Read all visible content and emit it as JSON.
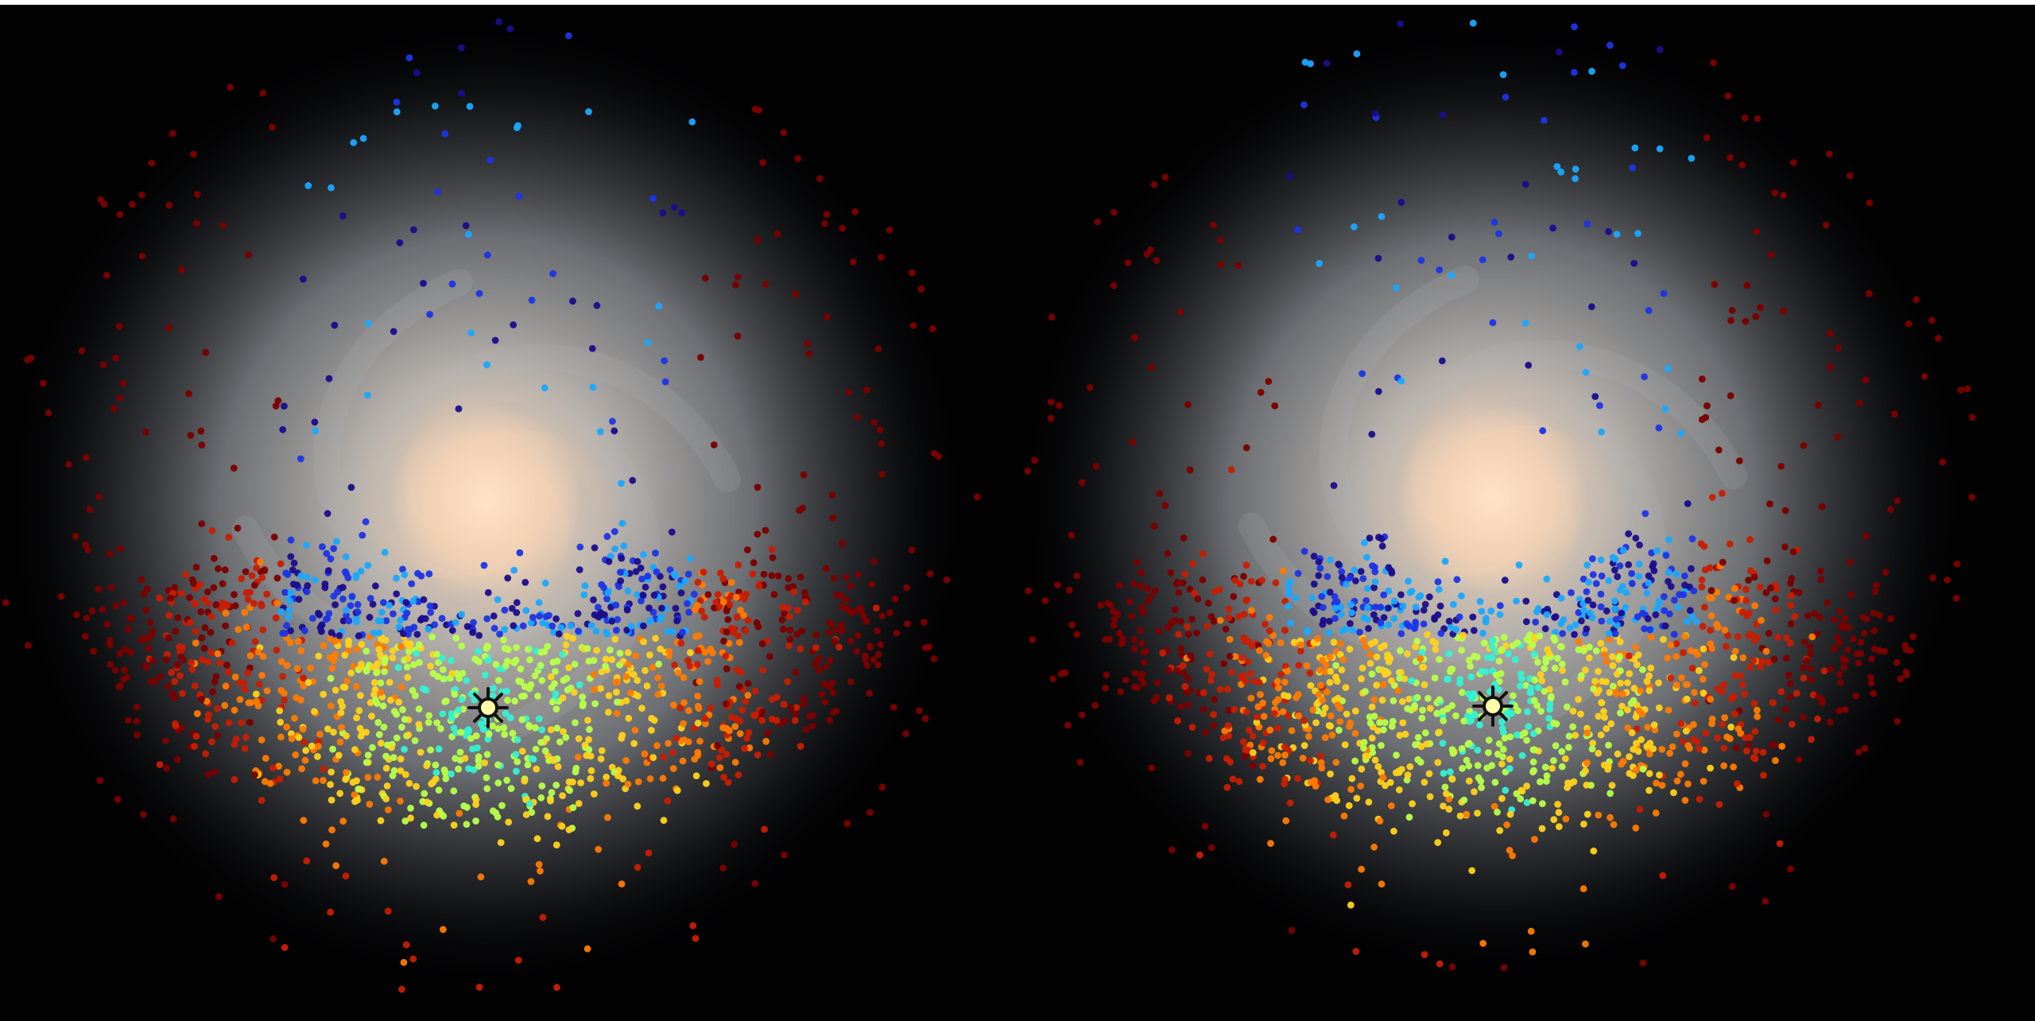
{
  "scene": {
    "background": "#020203",
    "top_strip_color": "#ffffff"
  },
  "galaxy": {
    "core_color": "#f6d8bc",
    "halo_color": "#8f9398",
    "arm_color": "#b4b8bd"
  },
  "sun_marker": {
    "icon": "sun-icon",
    "fill": "#ffffaa",
    "stroke": "#111111"
  },
  "colormap": [
    "#7a0000",
    "#c81e00",
    "#ff7a00",
    "#ffd21a",
    "#b8ff4a",
    "#34f2d2",
    "#1aa8ff",
    "#1c34e6",
    "#1a0d8c"
  ],
  "panels": [
    {
      "id": "left"
    },
    {
      "id": "right"
    }
  ]
}
